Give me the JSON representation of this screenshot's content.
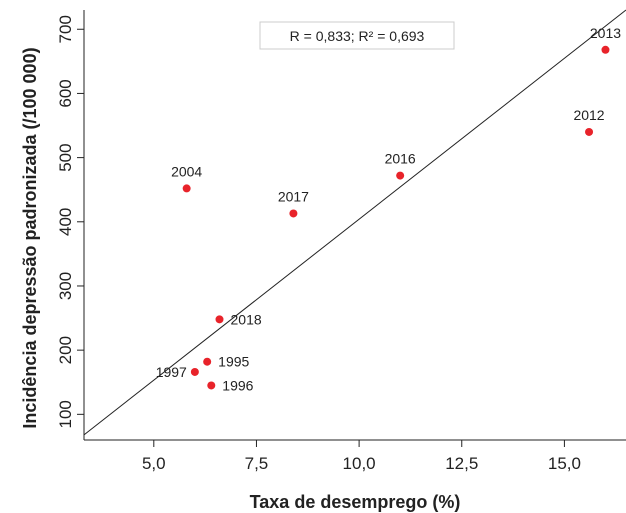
{
  "chart_data": {
    "type": "scatter",
    "xlabel": "Taxa de desemprego (%)",
    "ylabel": "Incidência depressão padronizada (/100 000)",
    "xlim": [
      3.3,
      16.5
    ],
    "ylim": [
      60,
      730
    ],
    "xticks": [
      5.0,
      7.5,
      10.0,
      12.5,
      15.0
    ],
    "xtick_labels": [
      "5,0",
      "7,5",
      "10,0",
      "12,5",
      "15,0"
    ],
    "yticks": [
      100,
      200,
      300,
      400,
      500,
      600,
      700
    ],
    "ytick_labels": [
      "100",
      "200",
      "300",
      "400",
      "500",
      "600",
      "700"
    ],
    "grid": false,
    "point_color": "#e8232a",
    "annotation": "R = 0,833; R² = 0,693",
    "trendline": {
      "x1": 3.3,
      "y1": 68,
      "x2": 16.5,
      "y2": 730
    },
    "points": [
      {
        "label": "1995",
        "x": 6.3,
        "y": 182,
        "label_pos": "right"
      },
      {
        "label": "1996",
        "x": 6.4,
        "y": 145,
        "label_pos": "right"
      },
      {
        "label": "1997",
        "x": 6.0,
        "y": 166,
        "label_pos": "left"
      },
      {
        "label": "2004",
        "x": 5.8,
        "y": 452,
        "label_pos": "above"
      },
      {
        "label": "2012",
        "x": 15.6,
        "y": 540,
        "label_pos": "above"
      },
      {
        "label": "2013",
        "x": 16.0,
        "y": 668,
        "label_pos": "above"
      },
      {
        "label": "2016",
        "x": 11.0,
        "y": 472,
        "label_pos": "above"
      },
      {
        "label": "2017",
        "x": 8.4,
        "y": 413,
        "label_pos": "above"
      },
      {
        "label": "2018",
        "x": 6.6,
        "y": 248,
        "label_pos": "right"
      }
    ]
  }
}
